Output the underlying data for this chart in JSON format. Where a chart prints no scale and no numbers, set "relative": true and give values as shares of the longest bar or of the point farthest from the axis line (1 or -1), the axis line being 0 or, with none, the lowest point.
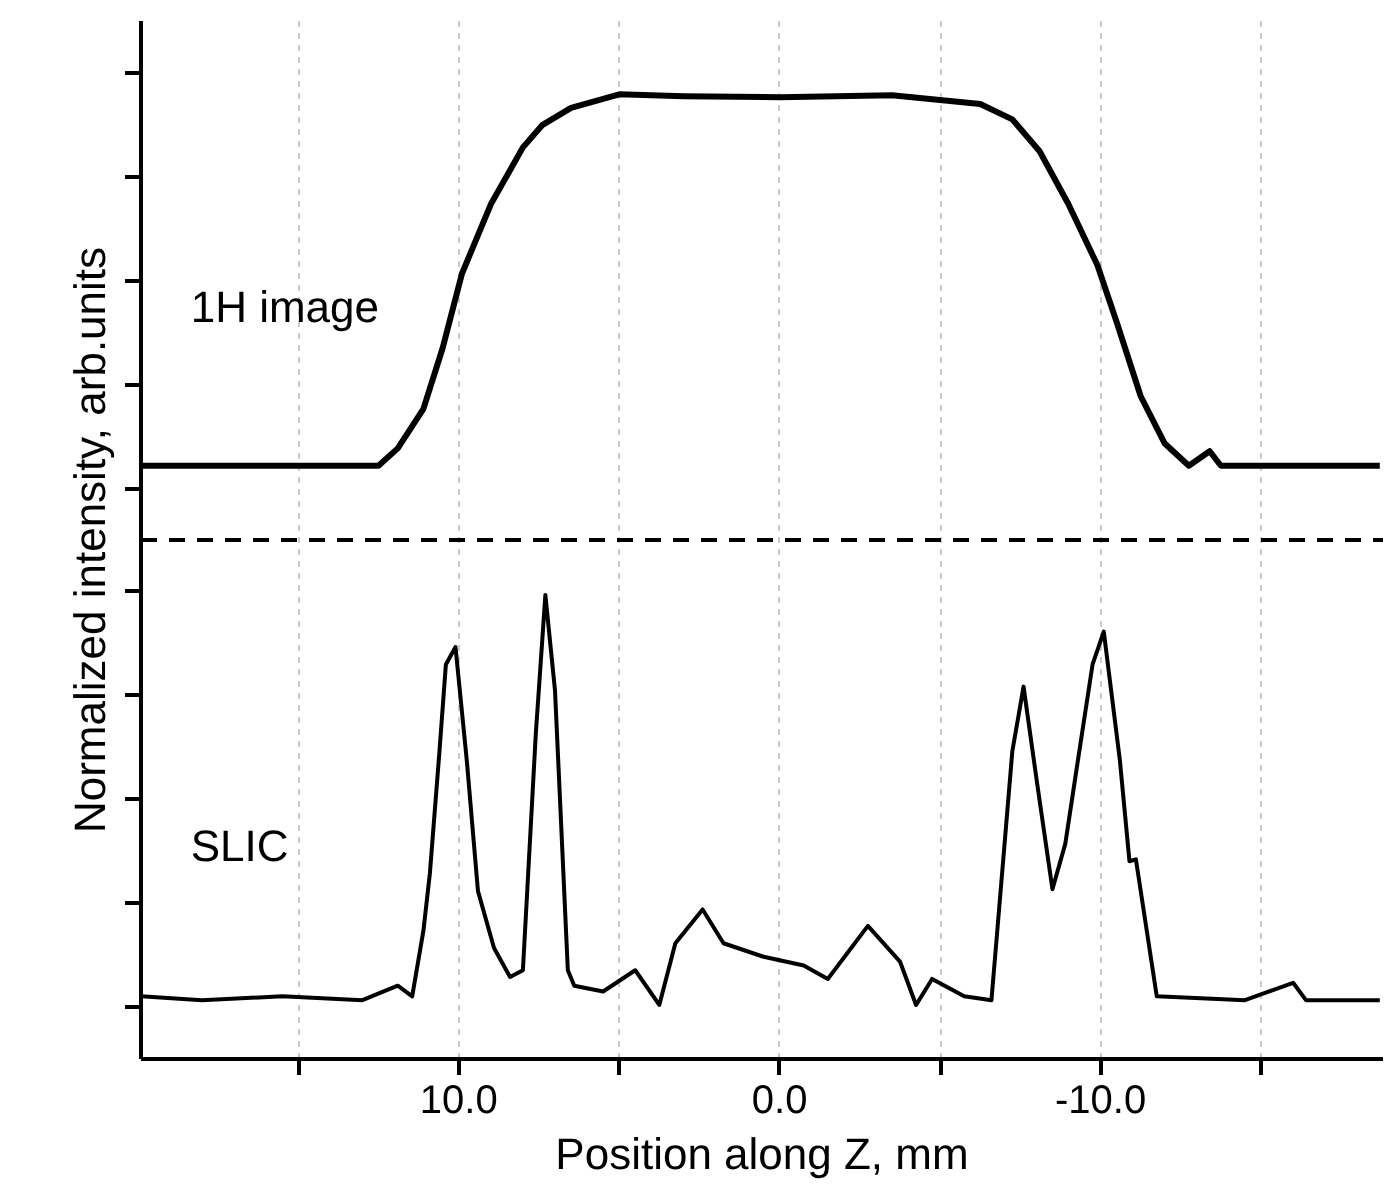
{
  "chart_data": {
    "type": "line",
    "relative": true,
    "xlabel": "Position along Z, mm",
    "ylabel": "Normalized intensity, arb.units",
    "xlim": [
      19.9,
      -18.8
    ],
    "xticks": [
      {
        "value": 15,
        "label": null
      },
      {
        "value": 10,
        "label": "10.0"
      },
      {
        "value": 5,
        "label": null
      },
      {
        "value": 0,
        "label": "0.0"
      },
      {
        "value": -5,
        "label": null
      },
      {
        "value": -10,
        "label": "-10.0"
      },
      {
        "value": -15,
        "label": null
      }
    ],
    "grid": "x",
    "legend": false,
    "line_style": "solid",
    "annotations": [
      "1H image",
      "SLIC"
    ],
    "ref_lines": [
      {
        "axis": "y",
        "value": 0.538,
        "color": "#000000",
        "line_style": "dashed"
      }
    ],
    "series": [
      {
        "color": "#000000",
        "x": [
          19.9,
          12.5,
          11.9,
          11.1,
          10.5,
          9.9,
          9.0,
          8.0,
          7.4,
          6.5,
          5.0,
          3.0,
          0,
          -3.5,
          -6.25,
          -7.25,
          -8.1,
          -9.0,
          -9.9,
          -10.5,
          -11.25,
          -12.0,
          -12.75,
          -13.4,
          -13.75,
          -18.7
        ],
        "values": [
          0.615,
          0.615,
          0.633,
          0.674,
          0.737,
          0.814,
          0.886,
          0.945,
          0.968,
          0.986,
          1.0,
          0.998,
          0.997,
          0.999,
          0.99,
          0.974,
          0.941,
          0.886,
          0.823,
          0.764,
          0.687,
          0.638,
          0.615,
          0.63,
          0.615,
          0.615
        ]
      },
      {
        "color": "#000000",
        "x": [
          19.9,
          18.0,
          15.5,
          13.0,
          11.9,
          11.45,
          11.1,
          10.9,
          10.6,
          10.4,
          10.1,
          9.75,
          9.4,
          8.9,
          8.4,
          8.0,
          7.6,
          7.3,
          7.0,
          6.6,
          6.4,
          5.5,
          4.5,
          3.75,
          3.25,
          2.4,
          1.75,
          0.5,
          -0.75,
          -1.5,
          -2.75,
          -3.75,
          -4.25,
          -4.75,
          -5.75,
          -6.6,
          -7.25,
          -7.6,
          -8.0,
          -8.5,
          -8.9,
          -9.25,
          -9.75,
          -10.1,
          -10.6,
          -10.9,
          -11.1,
          -11.75,
          -14.5,
          -16.0,
          -16.4,
          -18.7
        ],
        "values": [
          0.065,
          0.061,
          0.065,
          0.061,
          0.076,
          0.065,
          0.133,
          0.192,
          0.319,
          0.409,
          0.427,
          0.31,
          0.174,
          0.115,
          0.085,
          0.092,
          0.336,
          0.481,
          0.382,
          0.092,
          0.076,
          0.07,
          0.092,
          0.056,
          0.12,
          0.155,
          0.12,
          0.106,
          0.097,
          0.083,
          0.138,
          0.101,
          0.056,
          0.083,
          0.065,
          0.061,
          0.319,
          0.386,
          0.291,
          0.176,
          0.223,
          0.3,
          0.409,
          0.443,
          0.31,
          0.205,
          0.207,
          0.065,
          0.061,
          0.079,
          0.061,
          0.061
        ]
      }
    ]
  }
}
